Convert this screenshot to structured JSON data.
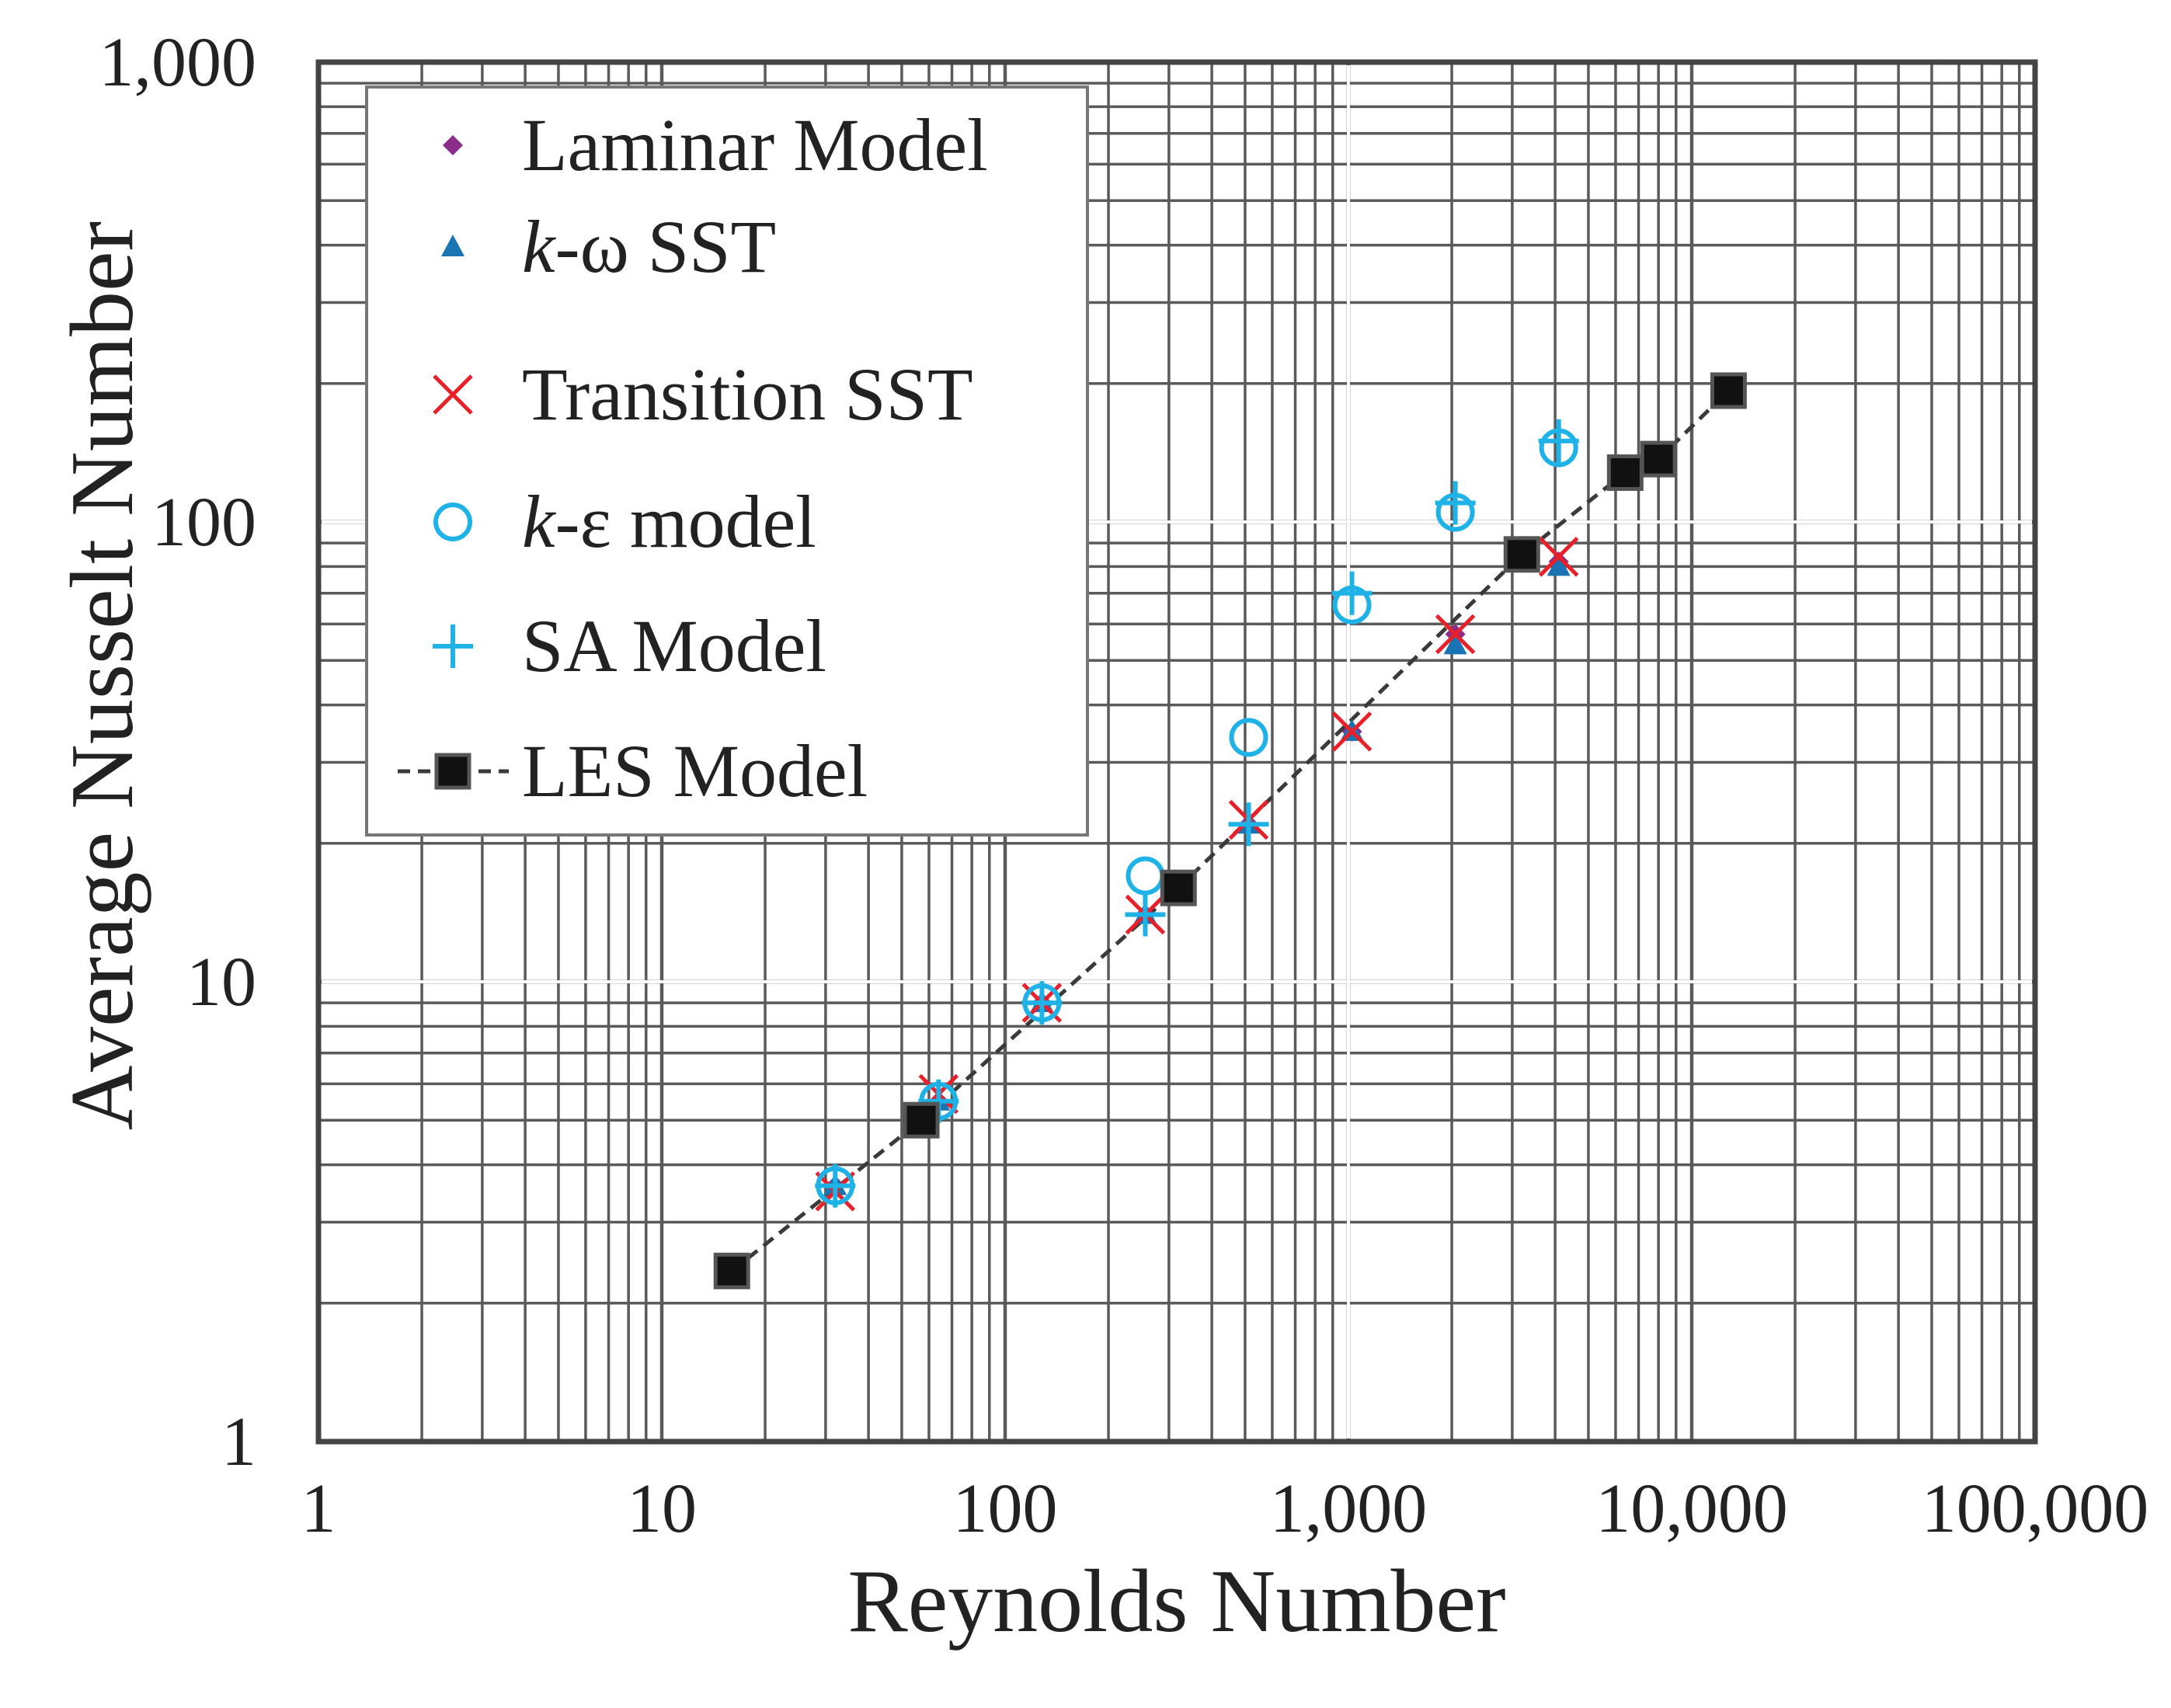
{
  "chart_data": {
    "type": "scatter",
    "xscale": "log",
    "yscale": "log",
    "xlim": [
      1,
      100000
    ],
    "ylim": [
      1,
      1000
    ],
    "xlabel": "Reynolds Number",
    "ylabel": "Average Nusselt Number",
    "xticks": [
      1,
      10,
      100,
      1000,
      10000,
      100000
    ],
    "xtick_labels": [
      "1",
      "10",
      "100",
      "1,000",
      "10,000",
      "100,000"
    ],
    "yticks": [
      1,
      10,
      100,
      1000
    ],
    "ytick_labels": [
      "1",
      "10",
      "100",
      "1,000"
    ],
    "grid": true,
    "legend_position": "top-left",
    "series": [
      {
        "name": "Laminar Model",
        "name_prefix": "",
        "name_italic": "",
        "name_suffix": "Laminar Model",
        "marker": "diamond",
        "color": "#8b2c8b",
        "line": false,
        "x": [
          32,
          64,
          128,
          256,
          512,
          1024,
          2048,
          4096
        ],
        "y": [
          3.6,
          5.5,
          9.0,
          14.0,
          22.0,
          35.0,
          57.0,
          82.0
        ]
      },
      {
        "name": "k-ω SST",
        "name_prefix": "",
        "name_italic": "k",
        "name_suffix": "-ω SST",
        "marker": "triangle",
        "color": "#1a74b4",
        "line": false,
        "x": [
          32,
          64,
          128,
          256,
          512,
          1024,
          2048,
          4096
        ],
        "y": [
          3.6,
          5.5,
          9.0,
          14.0,
          22.0,
          35.0,
          54.0,
          80.0
        ]
      },
      {
        "name": "Transition SST",
        "name_prefix": "",
        "name_italic": "",
        "name_suffix": "Transition SST",
        "marker": "x",
        "color": "#e8202a",
        "line": false,
        "x": [
          32,
          64,
          128,
          256,
          512,
          1024,
          2048,
          4096
        ],
        "y": [
          3.5,
          5.7,
          9.0,
          14.0,
          22.5,
          35.0,
          57.0,
          84.0
        ]
      },
      {
        "name": "k-ε model",
        "name_prefix": "",
        "name_italic": "k",
        "name_suffix": "-ε model",
        "marker": "circle",
        "color": "#1fb2e6",
        "line": false,
        "x": [
          32,
          64,
          128,
          256,
          512,
          1024,
          2048,
          4096
        ],
        "y": [
          3.6,
          5.5,
          9.0,
          17.0,
          34.0,
          66.0,
          105.0,
          145.0
        ]
      },
      {
        "name": "SA Model",
        "name_prefix": "",
        "name_italic": "",
        "name_suffix": "SA Model",
        "marker": "plus",
        "color": "#1fb2e6",
        "line": false,
        "x": [
          32,
          64,
          128,
          256,
          512,
          1024,
          2048,
          4096
        ],
        "y": [
          3.6,
          5.5,
          9.0,
          14.0,
          22.0,
          70.0,
          110.0,
          150.0
        ]
      },
      {
        "name": "LES Model",
        "name_prefix": "",
        "name_italic": "",
        "name_suffix": "LES Model",
        "marker": "square",
        "color": "#111111",
        "line": true,
        "dashed": true,
        "x": [
          16,
          57,
          320,
          3200,
          6400,
          8000,
          12800
        ],
        "y": [
          2.35,
          5.0,
          16.0,
          85.0,
          128.0,
          137.0,
          193.0
        ]
      }
    ]
  }
}
